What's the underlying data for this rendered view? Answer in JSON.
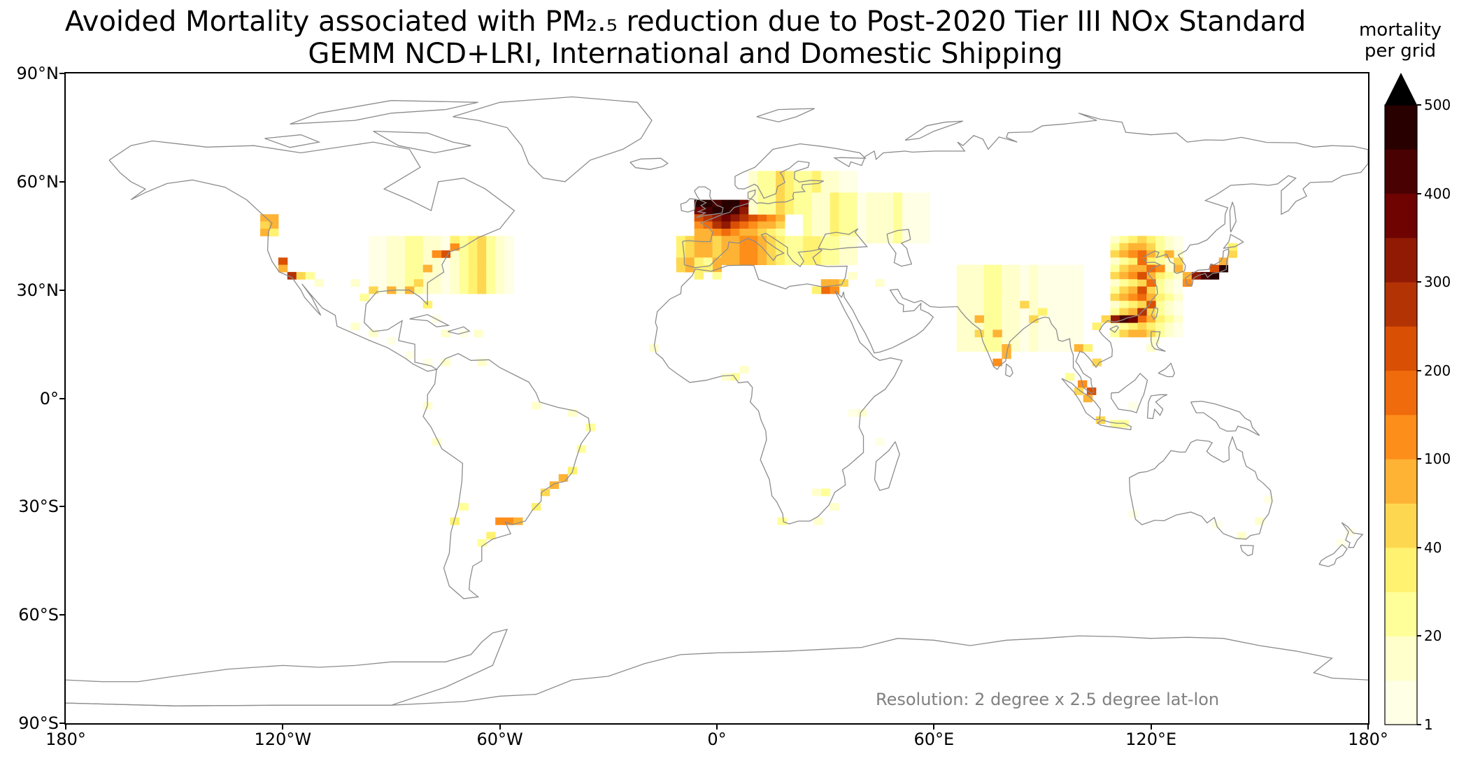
{
  "title_line1": "Avoided Mortality associated with PM₂.₅ reduction due to Post-2020 Tier III NOx Standard",
  "title_line2": "GEMM NCD+LRI, International and Domestic Shipping",
  "map": {
    "projection": "PlateCarree",
    "lon_range": [
      -180,
      180
    ],
    "lat_range": [
      -90,
      90
    ],
    "coastline_color": "#8c8c8c",
    "x_ticks": [
      {
        "value": -180,
        "label": "180°"
      },
      {
        "value": -120,
        "label": "120°W"
      },
      {
        "value": -60,
        "label": "60°W"
      },
      {
        "value": 0,
        "label": "0°"
      },
      {
        "value": 60,
        "label": "60°E"
      },
      {
        "value": 120,
        "label": "120°E"
      },
      {
        "value": 180,
        "label": "180°"
      }
    ],
    "y_ticks": [
      {
        "value": 90,
        "label": "90°N"
      },
      {
        "value": 60,
        "label": "60°N"
      },
      {
        "value": 30,
        "label": "30°N"
      },
      {
        "value": 0,
        "label": "0°"
      },
      {
        "value": -30,
        "label": "30°S"
      },
      {
        "value": -60,
        "label": "60°S"
      },
      {
        "value": -90,
        "label": "90°S"
      }
    ],
    "resolution_note": "Resolution: 2 degree x 2.5 degree lat-lon",
    "cell_size_deg": {
      "lon": 2.5,
      "lat": 2
    },
    "hotspots": [
      {
        "region": "Europe",
        "lon": 5,
        "lat": 50,
        "max_level": 500
      },
      {
        "region": "Southern China",
        "lon": 112,
        "lat": 22,
        "max_level": 400
      },
      {
        "region": "Japan",
        "lon": 138,
        "lat": 35,
        "max_level": 500
      },
      {
        "region": "Eastern China",
        "lon": 118,
        "lat": 32,
        "max_level": 200
      },
      {
        "region": "Nile Delta",
        "lon": 31,
        "lat": 30,
        "max_level": 150
      },
      {
        "region": "Singapore",
        "lon": 104,
        "lat": 2,
        "max_level": 200
      },
      {
        "region": "US West Coast",
        "lon": -119,
        "lat": 35,
        "max_level": 200
      },
      {
        "region": "US East Coast",
        "lon": -75,
        "lat": 40,
        "max_level": 200
      },
      {
        "region": "Rio de la Plata",
        "lon": -58,
        "lat": -34,
        "max_level": 100
      }
    ]
  },
  "colorbar": {
    "title_line1": "mortality",
    "title_line2": "per grid",
    "extend": "max",
    "levels": [
      1,
      10,
      20,
      30,
      40,
      50,
      100,
      150,
      200,
      250,
      300,
      350,
      400,
      450,
      500
    ],
    "tick_labels": [
      "1",
      "20",
      "40",
      "100",
      "200",
      "300",
      "400",
      "500"
    ],
    "colors": [
      "#ffffe5",
      "#ffffcc",
      "#ffff99",
      "#fff270",
      "#fed750",
      "#feb335",
      "#fe8e1a",
      "#f06b0b",
      "#d95004",
      "#b33305",
      "#901a04",
      "#6e0302",
      "#4a0101",
      "#280000"
    ],
    "extend_color": "#000000"
  }
}
